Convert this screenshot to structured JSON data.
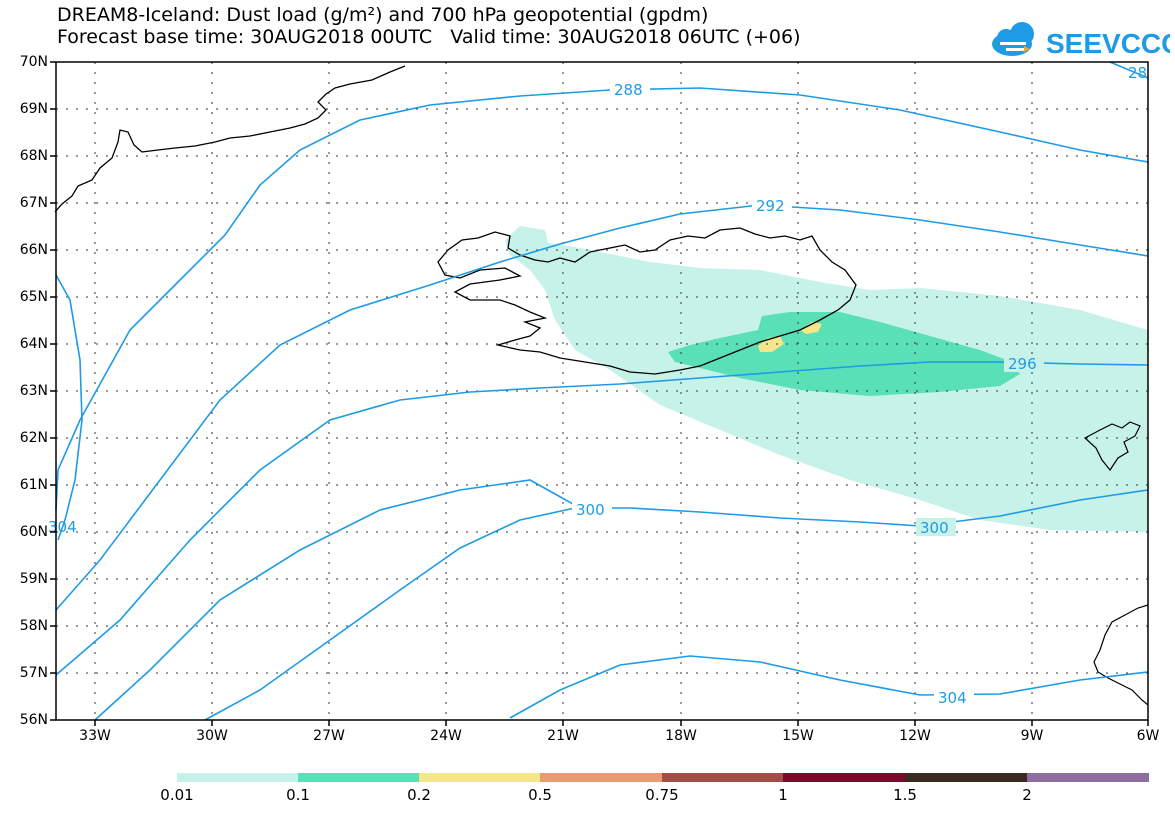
{
  "header": {
    "title_line1": "DREAM8-Iceland: Dust load (g/m²) and 700 hPa geopotential (gpdm)",
    "title_line2": "Forecast base time: 30AUG2018 00UTC   Valid time: 30AUG2018 06UTC (+06)",
    "logo_text": "SEEVCCC"
  },
  "map": {
    "lat_labels": [
      "70N",
      "69N",
      "68N",
      "67N",
      "66N",
      "65N",
      "64N",
      "63N",
      "62N",
      "61N",
      "60N",
      "59N",
      "58N",
      "57N",
      "56N"
    ],
    "lon_labels": [
      "33W",
      "30W",
      "27W",
      "24W",
      "21W",
      "18W",
      "15W",
      "12W",
      "9W",
      "6W"
    ],
    "contour_labels": [
      "288",
      "292",
      "296",
      "300",
      "300",
      "304",
      "28",
      "304"
    ]
  },
  "colorbar": {
    "colors": [
      "#c6f2ea",
      "#5ae0b6",
      "#f5e68c",
      "#ea9a72",
      "#a24e46",
      "#7a0a2a",
      "#3a2a22",
      "#8f6da2"
    ],
    "labels": [
      "0.01",
      "0.1",
      "0.2",
      "0.5",
      "0.75",
      "1",
      "1.5",
      "2"
    ]
  },
  "colors": {
    "contour": "#1e9be6",
    "coast": "#000000",
    "grid": "#333333"
  }
}
